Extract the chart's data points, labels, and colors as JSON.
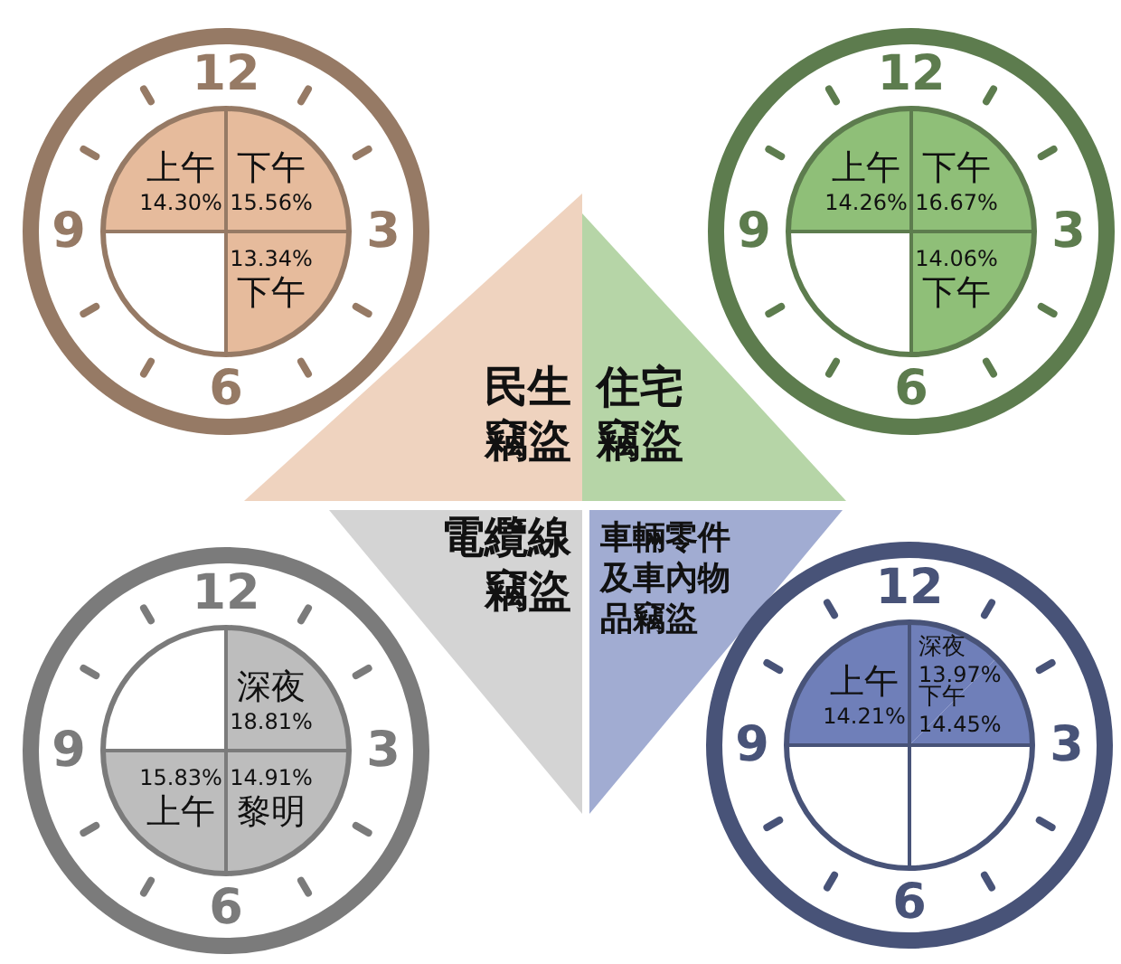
{
  "chart_data": [
    {
      "type": "other",
      "title": "民生竊盜",
      "categories": [
        "上午",
        "下午",
        "下午",
        null
      ],
      "values": [
        14.3,
        15.56,
        13.34,
        null
      ],
      "value_labels": [
        "14.30%",
        "15.56%",
        "13.34%",
        null
      ],
      "colors": [
        "#e6bb9c",
        "#e6bb9c",
        "#e6bb9c",
        null
      ],
      "annotations": [
        "12",
        "3",
        "6",
        "9"
      ]
    },
    {
      "type": "other",
      "title": "住宅竊盜",
      "categories": [
        "上午",
        "下午",
        "下午",
        null
      ],
      "values": [
        14.26,
        16.67,
        14.06,
        null
      ],
      "value_labels": [
        "14.26%",
        "16.67%",
        "14.06%",
        null
      ],
      "colors": [
        "#8fbf78",
        "#8fbf78",
        "#8fbf78",
        null
      ],
      "annotations": [
        "12",
        "3",
        "6",
        "9"
      ]
    },
    {
      "type": "other",
      "title": "電纜線竊盜",
      "categories": [
        null,
        "深夜",
        "黎明",
        "上午"
      ],
      "values": [
        null,
        18.81,
        14.91,
        15.83
      ],
      "value_labels": [
        null,
        "18.81%",
        "14.91%",
        "15.83%"
      ],
      "colors": [
        null,
        "#bdbdbd",
        "#bdbdbd",
        "#bdbdbd"
      ],
      "annotations": [
        "12",
        "3",
        "6",
        "9"
      ]
    },
    {
      "type": "other",
      "title": "車輛零件及車內物品竊盜",
      "categories": [
        "上午",
        "深夜",
        "下午",
        null,
        null
      ],
      "values": [
        14.21,
        13.97,
        14.45,
        null,
        null
      ],
      "value_labels": [
        "14.21%",
        "13.97%",
        "14.45%",
        null,
        null
      ],
      "colors": [
        "#6f7fb9",
        "#6f7fb9",
        "#6f7fb9",
        null,
        null
      ],
      "annotations": [
        "12",
        "3",
        "6",
        "9"
      ]
    }
  ]
}
